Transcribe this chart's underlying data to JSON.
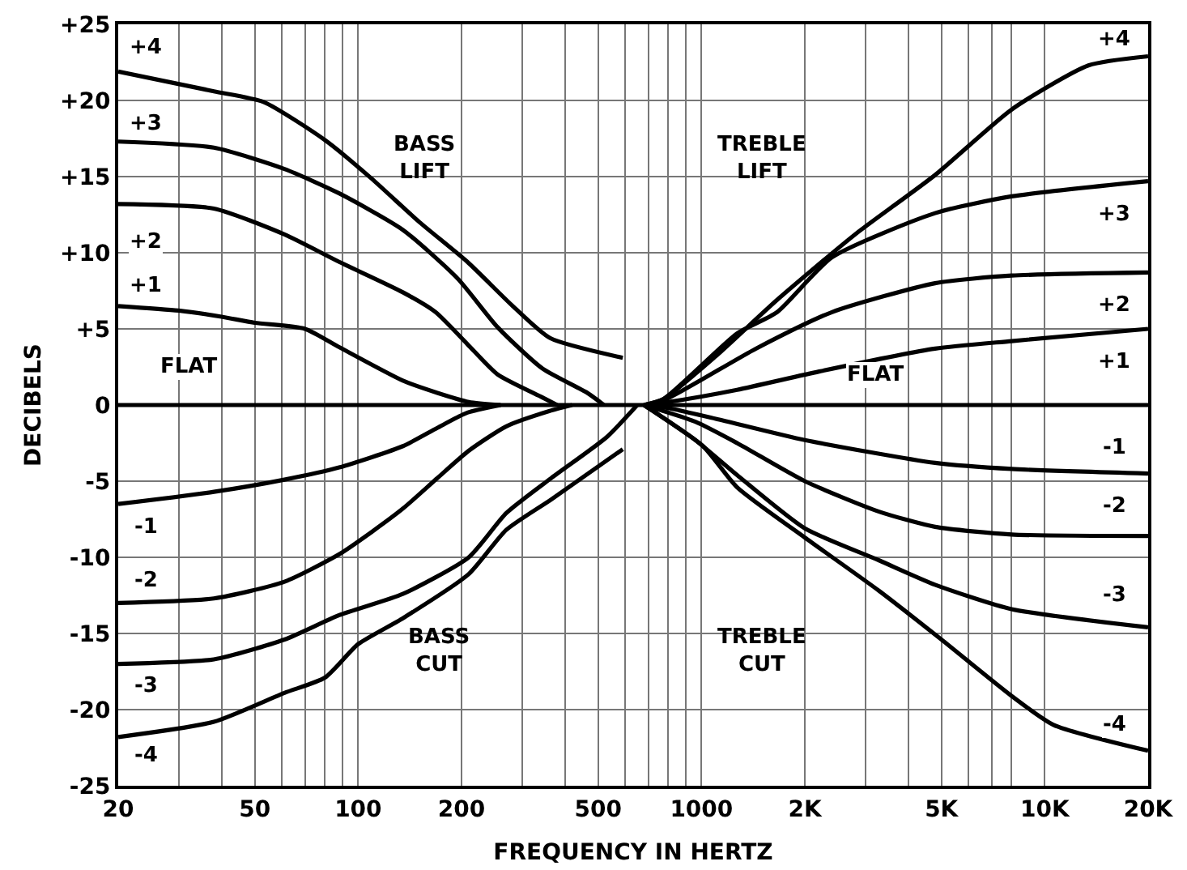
{
  "chart_data": {
    "type": "line",
    "xlabel": "FREQUENCY IN HERTZ",
    "ylabel": "DECIBELS",
    "log": "x",
    "grid": true,
    "marker": "none",
    "line_style": "solid",
    "xlim": [
      20,
      20000
    ],
    "ylim": [
      -25,
      25
    ],
    "xticks": [
      20,
      {
        "value": 30,
        "label": null
      },
      {
        "value": 40,
        "label": null
      },
      50,
      {
        "value": 60,
        "label": null
      },
      {
        "value": 70,
        "label": null
      },
      {
        "value": 80,
        "label": null
      },
      {
        "value": 90,
        "label": null
      },
      100,
      200,
      {
        "value": 300,
        "label": null
      },
      {
        "value": 400,
        "label": null
      },
      500,
      {
        "value": 600,
        "label": null
      },
      {
        "value": 700,
        "label": null
      },
      {
        "value": 800,
        "label": null
      },
      {
        "value": 900,
        "label": null
      },
      1000,
      {
        "value": 2000,
        "label": "2K"
      },
      {
        "value": 3000,
        "label": null
      },
      {
        "value": 4000,
        "label": null
      },
      {
        "value": 5000,
        "label": "5K"
      },
      {
        "value": 6000,
        "label": null
      },
      {
        "value": 7000,
        "label": null
      },
      {
        "value": 8000,
        "label": null
      },
      {
        "value": 10000,
        "label": "10K"
      },
      {
        "value": 20000,
        "label": "20K"
      }
    ],
    "yticks": [
      {
        "value": 25,
        "label": "+25"
      },
      {
        "value": 20,
        "label": "+20"
      },
      {
        "value": 15,
        "label": "+15"
      },
      {
        "value": 10,
        "label": "+10"
      },
      {
        "value": 5,
        "label": "+5"
      },
      0,
      -5,
      -10,
      -15,
      -20,
      -25
    ],
    "series": [
      {
        "color": "#000000",
        "x": [
          20,
          20000
        ],
        "values": [
          0,
          0
        ]
      },
      {
        "color": "#000000",
        "x": [
          20,
          38,
          53,
          80,
          109,
          151,
          208,
          282,
          362,
          590
        ],
        "values": [
          21.9,
          20.6,
          19.9,
          17.4,
          14.9,
          12,
          9.4,
          6.5,
          4.4,
          3.1
        ]
      },
      {
        "color": "#000000",
        "x": [
          20,
          38,
          61,
          88,
          135,
          195,
          255,
          344,
          465,
          520
        ],
        "values": [
          17.3,
          16.9,
          15.5,
          13.9,
          11.5,
          8.3,
          5.1,
          2.4,
          0.8,
          0
        ]
      },
      {
        "color": "#000000",
        "x": [
          20,
          38,
          61,
          88,
          135,
          168,
          208,
          255,
          344,
          380
        ],
        "values": [
          13.2,
          12.9,
          11.2,
          9.4,
          7.4,
          6.1,
          4,
          2,
          0.5,
          0
        ]
      },
      {
        "color": "#000000",
        "x": [
          20,
          30,
          40,
          50,
          70,
          88,
          135,
          170,
          210,
          260
        ],
        "values": [
          6.5,
          6.2,
          5.8,
          5.4,
          5,
          3.8,
          1.6,
          0.8,
          0.2,
          0
        ]
      },
      {
        "color": "#000000",
        "x": [
          20,
          38,
          61,
          88,
          135,
          170,
          208,
          260
        ],
        "values": [
          -6.5,
          -5.7,
          -4.9,
          -4.1,
          -2.7,
          -1.5,
          -0.5,
          0
        ]
      },
      {
        "color": "#000000",
        "x": [
          20,
          38,
          61,
          88,
          110,
          135,
          170,
          210,
          270,
          360,
          420
        ],
        "values": [
          -13,
          -12.7,
          -11.6,
          -9.8,
          -8.3,
          -6.8,
          -4.8,
          -3,
          -1.4,
          -0.4,
          0
        ]
      },
      {
        "color": "#000000",
        "x": [
          20,
          38,
          61,
          88,
          135,
          210,
          270,
          365,
          530,
          650
        ],
        "values": [
          -17,
          -16.7,
          -15.4,
          -13.8,
          -12.4,
          -10,
          -7.1,
          -4.8,
          -2.1,
          0
        ]
      },
      {
        "color": "#000000",
        "x": [
          20,
          38,
          61,
          80,
          100,
          135,
          210,
          270,
          365,
          590
        ],
        "values": [
          -21.8,
          -20.8,
          -18.9,
          -17.9,
          -15.7,
          -14,
          -11.1,
          -8.2,
          -6.2,
          -2.9
        ]
      },
      {
        "color": "#000000",
        "x": [
          680,
          776,
          1100,
          1660,
          2800,
          4790,
          8000,
          13400,
          20000
        ],
        "values": [
          0,
          0.4,
          3.2,
          6.9,
          11.2,
          15.1,
          19.4,
          22.3,
          22.9
        ]
      },
      {
        "color": "#000000",
        "x": [
          680,
          776,
          1270,
          1660,
          2400,
          4790,
          8000,
          20000
        ],
        "values": [
          0,
          0.4,
          4.7,
          6.1,
          9.7,
          12.6,
          13.7,
          14.7
        ]
      },
      {
        "color": "#000000",
        "x": [
          680,
          776,
          1440,
          2400,
          4790,
          8000,
          20000
        ],
        "values": [
          0,
          0.3,
          3.7,
          6.1,
          8,
          8.5,
          8.7
        ]
      },
      {
        "color": "#000000",
        "x": [
          680,
          800,
          1270,
          2200,
          4790,
          8000,
          20000
        ],
        "values": [
          0,
          0.2,
          1,
          2.2,
          3.7,
          4.2,
          5
        ]
      },
      {
        "color": "#000000",
        "x": [
          680,
          800,
          1100,
          2000,
          4790,
          8000,
          20000
        ],
        "values": [
          0,
          -0.2,
          -0.9,
          -2.3,
          -3.8,
          -4.2,
          -4.5
        ]
      },
      {
        "color": "#000000",
        "x": [
          680,
          960,
          1270,
          2000,
          3290,
          4790,
          8000,
          20000
        ],
        "values": [
          0,
          -1.1,
          -2.5,
          -5,
          -7,
          -8,
          -8.5,
          -8.6
        ]
      },
      {
        "color": "#000000",
        "x": [
          680,
          960,
          1270,
          2000,
          3290,
          4790,
          8000,
          20000
        ],
        "values": [
          0,
          -2.3,
          -4.6,
          -8.1,
          -10.2,
          -11.8,
          -13.4,
          -14.6
        ]
      },
      {
        "color": "#000000",
        "x": [
          680,
          1010,
          1270,
          2000,
          3290,
          5000,
          8000,
          10600,
          20000
        ],
        "values": [
          0,
          -2.7,
          -5.4,
          -8.7,
          -12.2,
          -15.4,
          -19.1,
          -21,
          -22.7
        ]
      }
    ],
    "annotations": [
      {
        "text": "+4",
        "x": 24,
        "y": 23.5
      },
      {
        "text": "+3",
        "x": 24,
        "y": 18.5
      },
      {
        "text": "+2",
        "x": 24,
        "y": 10.7
      },
      {
        "text": "+1",
        "x": 24,
        "y": 7.8
      },
      {
        "text": "FLAT",
        "x": 32,
        "y": 2.5
      },
      {
        "text": "-1",
        "x": 24,
        "y": -8
      },
      {
        "text": "-2",
        "x": 24,
        "y": -11.5
      },
      {
        "text": "-3",
        "x": 24,
        "y": -18.5
      },
      {
        "text": "-4",
        "x": 24,
        "y": -23
      },
      "BASS\nLIFT",
      "TREBLE\nLIFT",
      "BASS\nCUT",
      "TREBLE\nCUT",
      {
        "text": "FLAT",
        "x": 3200,
        "y": 2
      },
      {
        "text": "+4",
        "x": 16000,
        "y": 24
      },
      {
        "text": "+3",
        "x": 16000,
        "y": 12.5
      },
      {
        "text": "+2",
        "x": 16000,
        "y": 6.5
      },
      {
        "text": "+1",
        "x": 16000,
        "y": 2.8
      },
      {
        "text": "-1",
        "x": 16000,
        "y": -2.8
      },
      {
        "text": "-2",
        "x": 16000,
        "y": -6.7
      },
      {
        "text": "-3",
        "x": 16000,
        "y": -12.5
      },
      {
        "text": "-4",
        "x": 16000,
        "y": -21
      }
    ]
  }
}
